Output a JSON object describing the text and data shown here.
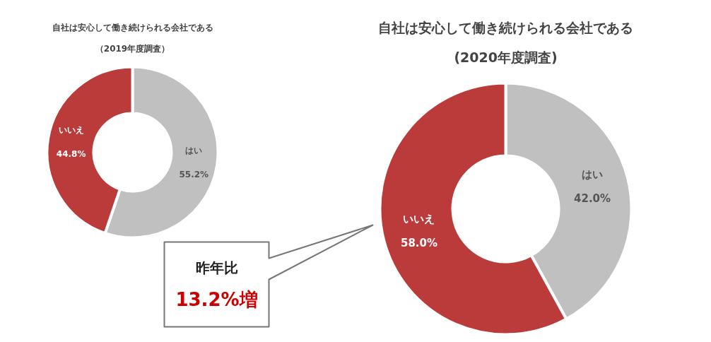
{
  "chart_data": [
    {
      "type": "donut",
      "title": "自社は安心して働き続けられる会社である",
      "subtitle": "（2019年度調査）",
      "categories": [
        "はい",
        "いいえ"
      ],
      "values": [
        55.2,
        44.8
      ],
      "colors": [
        "#c0c0c0",
        "#bb3b3b"
      ],
      "value_labels": [
        "55.2%",
        "44.8%"
      ]
    },
    {
      "type": "donut",
      "title": "自社は安心して働き続けられる会社である",
      "subtitle": "(2020年度調査)",
      "categories": [
        "はい",
        "いいえ"
      ],
      "values": [
        42.0,
        58.0
      ],
      "colors": [
        "#c0c0c0",
        "#bb3b3b"
      ],
      "value_labels": [
        "42.0%",
        "58.0%"
      ],
      "annotations": [
        "昨年比",
        "13.2%増"
      ]
    }
  ]
}
